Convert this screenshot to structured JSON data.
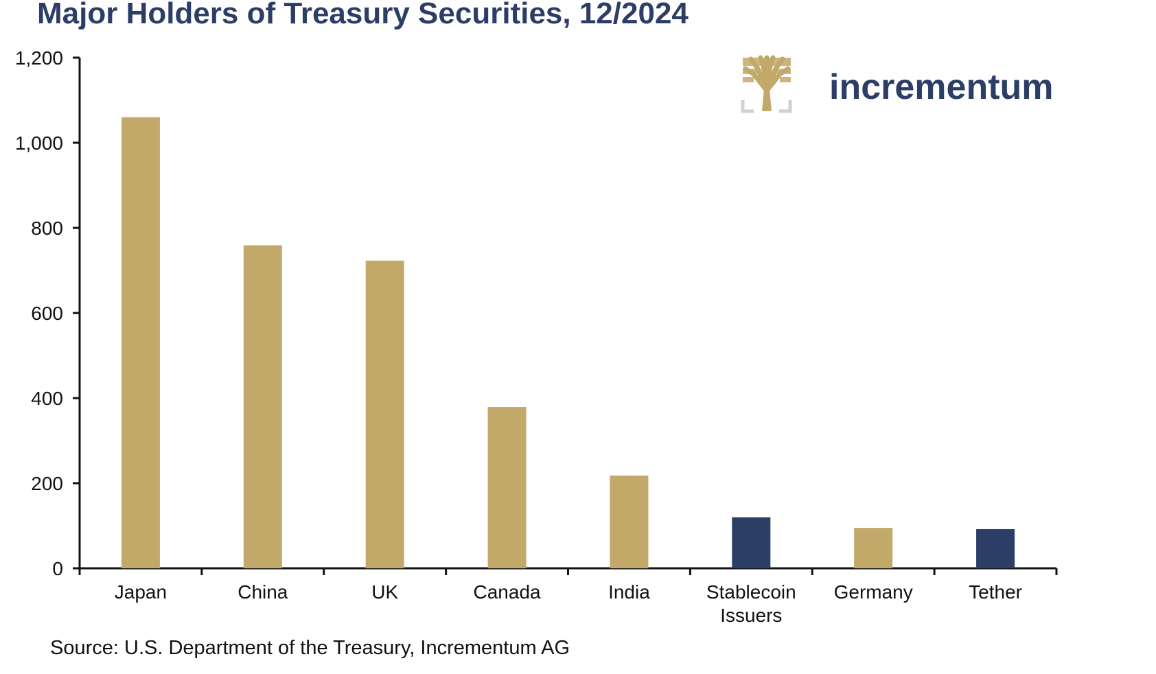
{
  "chart_data": {
    "type": "bar",
    "title": "Major Holders of Treasury Securities, 12/2024",
    "categories": [
      "Japan",
      "China",
      "UK",
      "Canada",
      "India",
      "Stablecoin Issuers",
      "Germany",
      "Tether"
    ],
    "values": [
      1060,
      759,
      723,
      379,
      218,
      120,
      95,
      92
    ],
    "bar_colors": [
      "#c2a96a",
      "#c2a96a",
      "#c2a96a",
      "#c2a96a",
      "#c2a96a",
      "#2c3e66",
      "#c2a96a",
      "#2c3e66"
    ],
    "ylim": [
      0,
      1200
    ],
    "yticks": [
      0,
      200,
      400,
      600,
      800,
      1000,
      1200
    ],
    "ytick_labels": [
      "0",
      "200",
      "400",
      "600",
      "800",
      "1,000",
      "1,200"
    ],
    "xlabel": "",
    "ylabel": "",
    "grid": false,
    "legend": "none"
  },
  "source": "Source: U.S. Department of the Treasury, Incrementum AG",
  "logo": {
    "text": "incrementum",
    "icon": "tree-icon"
  },
  "colors": {
    "gold": "#c2a96a",
    "navy": "#2c3e66",
    "axis": "#111111"
  }
}
